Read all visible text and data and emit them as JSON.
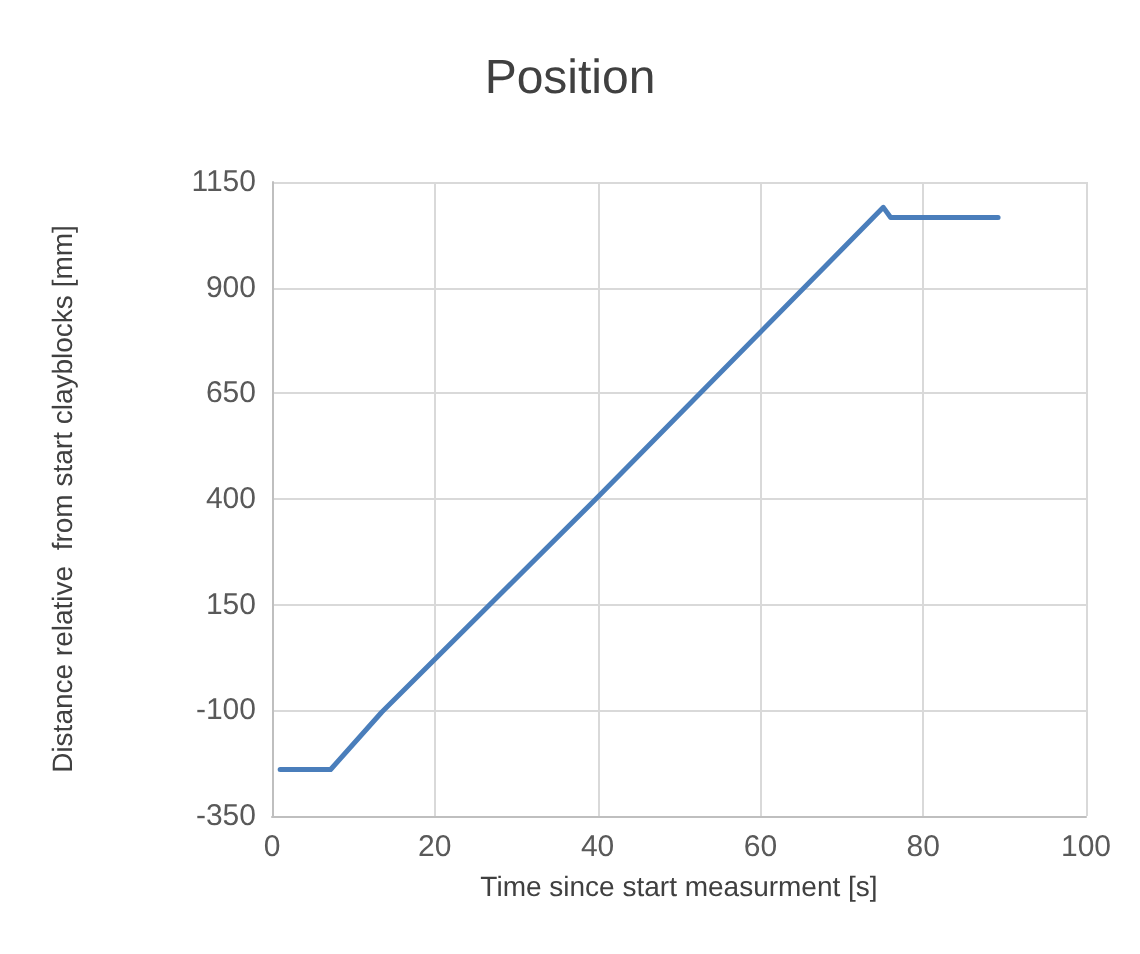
{
  "chart_data": {
    "type": "line",
    "title": "Position",
    "xlabel": "Time since start measurment [s]",
    "ylabel": "Distance relative  from start clayblocks [mm]",
    "series": [
      {
        "color": "#4a7ebb",
        "x": [
          1,
          7.2,
          13.5,
          40,
          75.1,
          76,
          89.2
        ],
        "values": [
          -240,
          -240,
          -104,
          404,
          1090,
          1066,
          1066
        ]
      }
    ],
    "xlim": [
      0,
      100
    ],
    "xticks": [
      0,
      20,
      40,
      60,
      80,
      100
    ],
    "ylim": [
      -350,
      1150
    ],
    "yticks": [
      -350,
      -100,
      150,
      400,
      650,
      900,
      1150
    ],
    "grid": true,
    "marker": "none",
    "line_style": "solid"
  }
}
